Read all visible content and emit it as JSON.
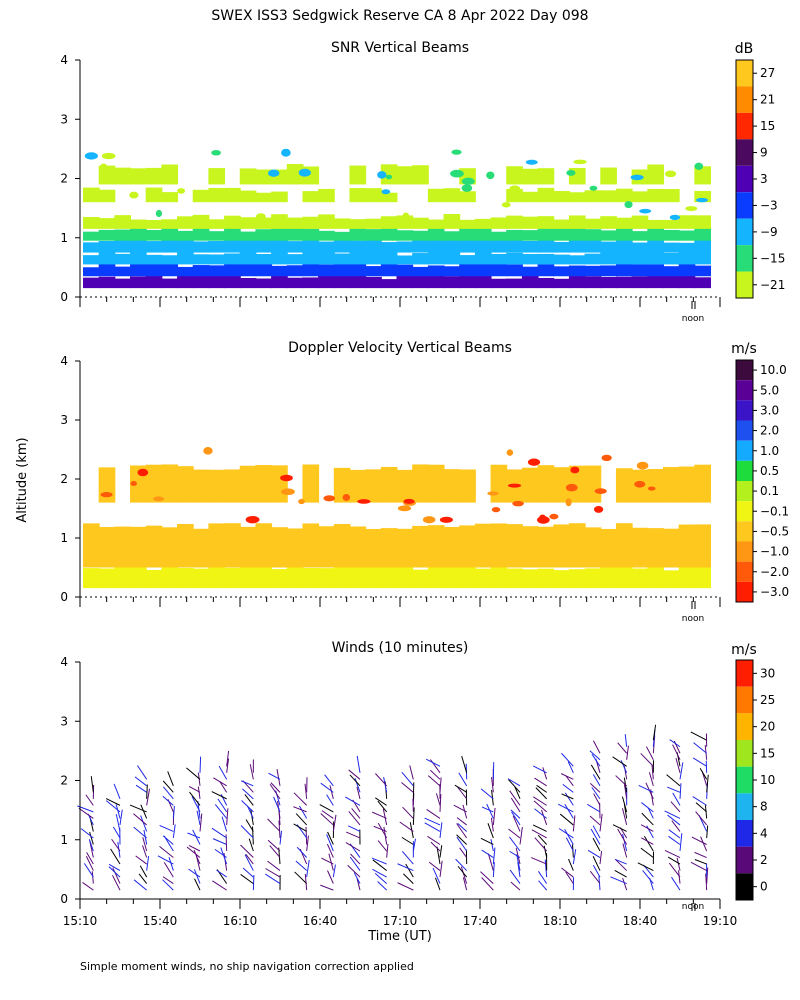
{
  "figure": {
    "title": "SWEX ISS3 Sedgwick Reserve CA   8 Apr 2022 Day 098",
    "ylabel": "Altitude (km)",
    "xlabel": "Time (UT)",
    "footnote": "Simple moment winds, no ship navigation correction applied",
    "noon_label": "noon"
  },
  "chart_data": [
    {
      "type": "heatmap",
      "title": "SNR Vertical Beams",
      "ylim": [
        0,
        4
      ],
      "yticks": [
        "0",
        "1",
        "2",
        "3",
        "4"
      ],
      "x_time_range_minutes": [
        0,
        240
      ],
      "colorbar_unit": "dB",
      "colorbar_labels": [
        "27",
        "21",
        "15",
        "9",
        "3",
        "−3",
        "−9",
        "−15",
        "−21"
      ],
      "colorbar_colors": [
        "#ffc81e",
        "#ff8c00",
        "#ff2800",
        "#4b0a5f",
        "#5000b4",
        "#0a3cff",
        "#14b4ff",
        "#28dc78",
        "#c8f51e"
      ],
      "layers": [
        {
          "alt_range_km": [
            0.15,
            0.35
          ],
          "class": "3"
        },
        {
          "alt_range_km": [
            0.35,
            0.55
          ],
          "class": "-3"
        },
        {
          "alt_range_km": [
            0.55,
            0.75
          ],
          "class": "-9"
        },
        {
          "alt_range_km": [
            0.75,
            0.95
          ],
          "class": "-9"
        },
        {
          "alt_range_km": [
            0.95,
            1.15
          ],
          "class": "-15"
        },
        {
          "alt_range_km": [
            1.15,
            1.35
          ],
          "class": "-21"
        },
        {
          "alt_range_km": [
            1.6,
            1.8
          ],
          "class": "-21"
        },
        {
          "alt_range_km": [
            1.9,
            2.2
          ],
          "class": "-21"
        }
      ]
    },
    {
      "type": "heatmap",
      "title": "Doppler Velocity Vertical Beams",
      "ylim": [
        0,
        4
      ],
      "yticks": [
        "0",
        "1",
        "2",
        "3",
        "4"
      ],
      "x_time_range_minutes": [
        0,
        240
      ],
      "colorbar_unit": "m/s",
      "colorbar_labels": [
        "10.0",
        "5.0",
        "3.0",
        "2.0",
        "1.0",
        "0.5",
        "0.1",
        "−0.1",
        "−0.5",
        "−1.0",
        "−2.0",
        "−3.0"
      ],
      "colorbar_colors": [
        "#3c0a3c",
        "#5a0096",
        "#3c14c8",
        "#1e50f0",
        "#14aaff",
        "#1edc3c",
        "#b4f01e",
        "#f0f514",
        "#ffc81e",
        "#ff9614",
        "#ff5a0a",
        "#ff1e00"
      ],
      "layers": [
        {
          "alt_range_km": [
            0.15,
            0.5
          ],
          "class": "-0.1"
        },
        {
          "alt_range_km": [
            0.5,
            1.2
          ],
          "class": "-0.5"
        },
        {
          "alt_range_km": [
            1.6,
            2.2
          ],
          "class": "-0.5"
        }
      ]
    },
    {
      "type": "scatter",
      "subtype": "wind barbs",
      "title": "Winds (10 minutes)",
      "ylim": [
        0,
        4
      ],
      "yticks": [
        "0",
        "1",
        "2",
        "3",
        "4"
      ],
      "xlim_minutes": [
        0,
        240
      ],
      "xticks": [
        "15:10",
        "15:40",
        "16:10",
        "16:40",
        "17:10",
        "17:40",
        "18:10",
        "18:40",
        "19:10"
      ],
      "colorbar_unit": "m/s",
      "colorbar_labels": [
        "30",
        "25",
        "20",
        "15",
        "10",
        "8",
        "4",
        "2",
        "0"
      ],
      "colorbar_colors": [
        "#ff1e00",
        "#ff7800",
        "#ffb400",
        "#a0e61e",
        "#1edc64",
        "#1eb4f0",
        "#1e28e6",
        "#5a0a78",
        "#000000"
      ],
      "profile_times_minutes": [
        5,
        15,
        25,
        35,
        45,
        55,
        65,
        75,
        85,
        95,
        105,
        115,
        125,
        135,
        145,
        155,
        165,
        175,
        185,
        195,
        205,
        215,
        225,
        235
      ],
      "profile_top_km": [
        1.9,
        1.8,
        2.1,
        2.0,
        2.2,
        2.3,
        2.2,
        2.1,
        1.9,
        2.0,
        2.2,
        2.0,
        2.1,
        2.3,
        2.2,
        2.1,
        2.0,
        2.2,
        2.3,
        2.5,
        2.6,
        2.7,
        2.6,
        2.7
      ]
    }
  ]
}
